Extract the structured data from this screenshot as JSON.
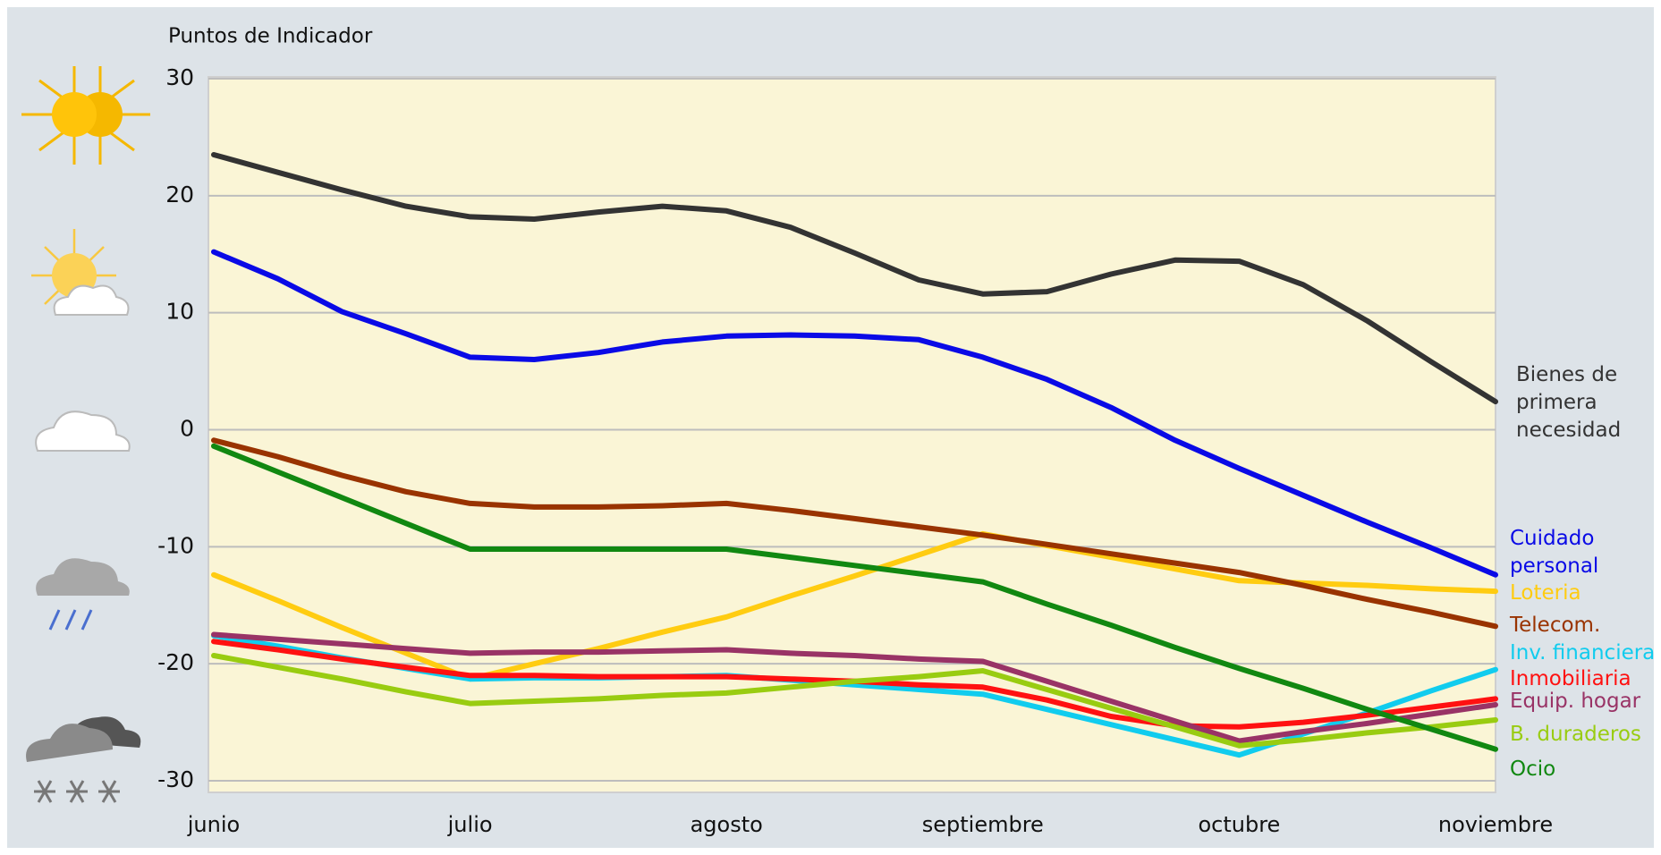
{
  "chart_data": {
    "type": "line",
    "title": "Puntos de Indicador",
    "categories": [
      "junio",
      null,
      null,
      null,
      "julio",
      null,
      null,
      null,
      "agosto",
      null,
      null,
      null,
      "septiembre",
      null,
      null,
      null,
      "octubre",
      null,
      null,
      null,
      "noviembre"
    ],
    "ylim": [
      -30,
      30
    ],
    "yticks": [
      -30,
      -20,
      -10,
      0,
      10,
      20,
      30
    ],
    "grid": true,
    "series": [
      {
        "name": "Bienes de primera necesidad",
        "color": "#333333",
        "values": [
          23.5,
          22.0,
          20.5,
          19.1,
          18.2,
          18.0,
          18.6,
          19.1,
          18.7,
          17.3,
          15.1,
          12.8,
          11.6,
          11.8,
          13.3,
          14.5,
          14.4,
          12.4,
          9.3,
          5.8,
          2.4
        ]
      },
      {
        "name": "Cuidado personal",
        "color": "#0a0ae6",
        "values": [
          15.2,
          12.9,
          10.1,
          8.2,
          6.2,
          6.0,
          6.6,
          7.5,
          8.0,
          8.1,
          8.0,
          7.7,
          6.2,
          4.3,
          1.9,
          -0.9,
          -3.3,
          -5.6,
          -7.9,
          -10.1,
          -12.4
        ]
      },
      {
        "name": "Loteria",
        "color": "#ffcc11",
        "values": [
          -12.4,
          -14.6,
          -16.9,
          -19.1,
          -21.3,
          -20.0,
          -18.7,
          -17.3,
          -16.0,
          -14.2,
          -12.5,
          -10.7,
          -8.9,
          -9.9,
          -10.9,
          -11.9,
          -12.9,
          -13.1,
          -13.3,
          -13.6,
          -13.8
        ]
      },
      {
        "name": "Telecom.",
        "color": "#993300",
        "values": [
          -0.9,
          -2.3,
          -3.9,
          -5.3,
          -6.3,
          -6.6,
          -6.6,
          -6.5,
          -6.3,
          -6.9,
          -7.6,
          -8.3,
          -9.0,
          -9.8,
          -10.6,
          -11.4,
          -12.2,
          -13.3,
          -14.5,
          -15.6,
          -16.8
        ]
      },
      {
        "name": "Inv. financiera",
        "color": "#11ccee",
        "values": [
          -17.6,
          -18.5,
          -19.5,
          -20.4,
          -21.3,
          -21.2,
          -21.2,
          -21.1,
          -21.0,
          -21.4,
          -21.8,
          -22.2,
          -22.6,
          -23.9,
          -25.2,
          -26.5,
          -27.8,
          -26.0,
          -24.2,
          -22.3,
          -20.5
        ]
      },
      {
        "name": "Inmobiliaria",
        "color": "#ff1111",
        "values": [
          -18.1,
          -18.8,
          -19.6,
          -20.3,
          -21.0,
          -21.0,
          -21.1,
          -21.1,
          -21.1,
          -21.3,
          -21.5,
          -21.8,
          -22.0,
          -23.1,
          -24.5,
          -25.3,
          -25.4,
          -25.0,
          -24.4,
          -23.7,
          -23.0
        ]
      },
      {
        "name": "Equip. hogar",
        "color": "#993366",
        "values": [
          -17.5,
          -17.9,
          -18.3,
          -18.7,
          -19.1,
          -19.0,
          -19.0,
          -18.9,
          -18.8,
          -19.1,
          -19.3,
          -19.6,
          -19.8,
          -21.5,
          -23.2,
          -24.9,
          -26.6,
          -25.8,
          -25.1,
          -24.3,
          -23.5
        ]
      },
      {
        "name": "B. duraderos",
        "color": "#99cc11",
        "values": [
          -19.3,
          -20.3,
          -21.3,
          -22.4,
          -23.4,
          -23.2,
          -23.0,
          -22.7,
          -22.5,
          -22.0,
          -21.5,
          -21.1,
          -20.6,
          -22.2,
          -23.8,
          -25.4,
          -27.0,
          -26.5,
          -25.9,
          -25.4,
          -24.8
        ]
      },
      {
        "name": "Ocio",
        "color": "#118811",
        "values": [
          -1.4,
          -3.6,
          -5.8,
          -8.0,
          -10.2,
          -10.2,
          -10.2,
          -10.2,
          -10.2,
          -10.9,
          -11.6,
          -12.3,
          -13.0,
          -14.9,
          -16.7,
          -18.6,
          -20.4,
          -22.1,
          -23.9,
          -25.6,
          -27.3
        ]
      }
    ]
  }
}
